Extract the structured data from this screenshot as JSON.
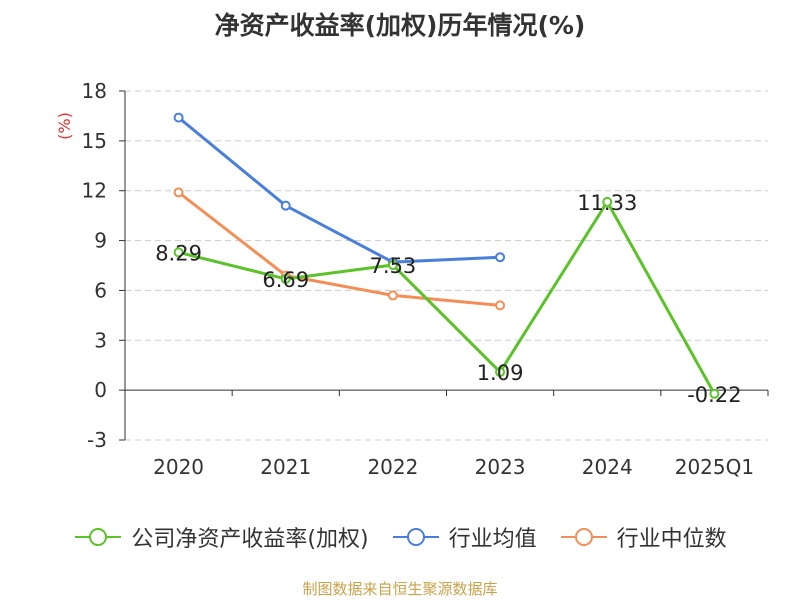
{
  "title": "净资产收益率(加权)历年情况(%)",
  "footer": "制图数据来自恒生聚源数据库",
  "chart_data": {
    "type": "line",
    "categories": [
      "2020",
      "2021",
      "2022",
      "2023",
      "2024",
      "2025Q1"
    ],
    "ylabel": "(%)",
    "ylim": [
      -3,
      18
    ],
    "yticks": [
      -3,
      0,
      3,
      6,
      9,
      12,
      15,
      18
    ],
    "grid": true,
    "legend_position": "bottom",
    "series": [
      {
        "name": "公司净资产收益率(加权)",
        "color": "#5cc22a",
        "values": [
          8.29,
          6.69,
          7.53,
          1.09,
          11.33,
          -0.22
        ],
        "labels": [
          "8.29",
          "6.69",
          "7.53",
          "1.09",
          "11.33",
          "-0.22"
        ]
      },
      {
        "name": "行业均值",
        "color": "#4a7fd9",
        "values": [
          16.4,
          11.1,
          7.7,
          8.0,
          null,
          null
        ]
      },
      {
        "name": "行业中位数",
        "color": "#f28e56",
        "values": [
          11.9,
          6.9,
          5.7,
          5.1,
          null,
          null
        ]
      }
    ]
  }
}
